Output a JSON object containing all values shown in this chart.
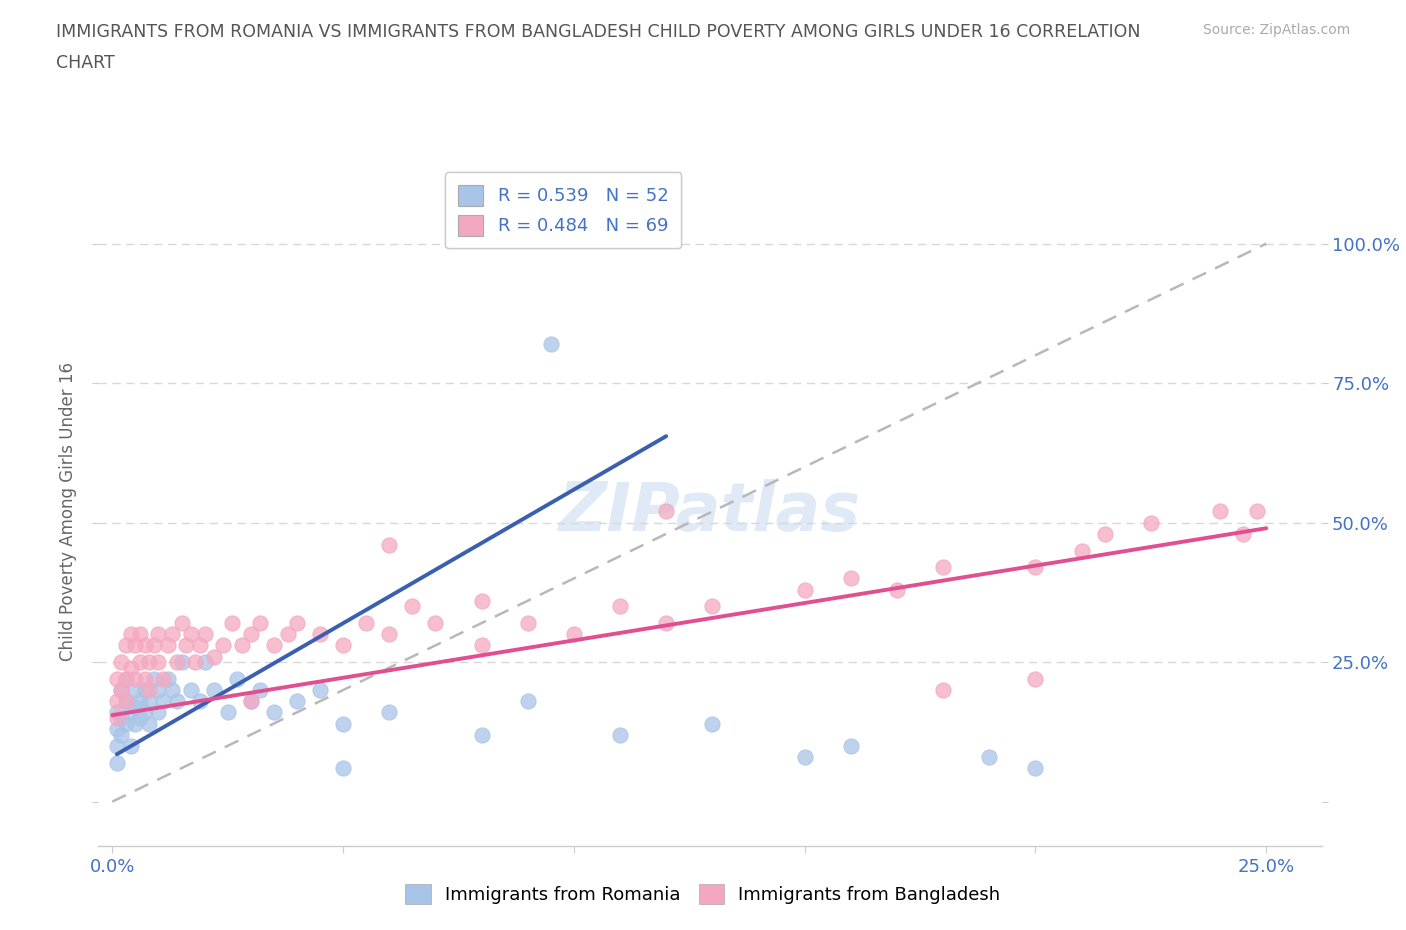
{
  "title_line1": "IMMIGRANTS FROM ROMANIA VS IMMIGRANTS FROM BANGLADESH CHILD POVERTY AMONG GIRLS UNDER 16 CORRELATION",
  "title_line2": "CHART",
  "source_text": "Source: ZipAtlas.com",
  "ylabel": "Child Poverty Among Girls Under 16",
  "xlim": [
    -0.003,
    0.262
  ],
  "ylim": [
    -0.08,
    1.12
  ],
  "xtick_vals": [
    0.0,
    0.05,
    0.1,
    0.15,
    0.2,
    0.25
  ],
  "xticklabels": [
    "0.0%",
    "",
    "",
    "",
    "",
    "25.0%"
  ],
  "ytick_vals": [
    0.0,
    0.25,
    0.5,
    0.75,
    1.0
  ],
  "yticklabels_right": [
    "",
    "25.0%",
    "50.0%",
    "75.0%",
    "100.0%"
  ],
  "romania_R": 0.539,
  "romania_N": 52,
  "bangladesh_R": 0.484,
  "bangladesh_N": 69,
  "romania_color": "#a8c4e8",
  "bangladesh_color": "#f4a8c0",
  "romania_line_color": "#3a5fb0",
  "bangladesh_line_color": "#e05090",
  "diag_line_color": "#b8b8b8",
  "grid_color": "#d8d8d8",
  "legend_text_color": "#4472c4",
  "watermark_color": "#c8d8f0",
  "romania_line_x": [
    0.001,
    0.12
  ],
  "romania_line_y": [
    0.085,
    0.655
  ],
  "bangladesh_line_x": [
    0.0,
    0.25
  ],
  "bangladesh_line_y": [
    0.155,
    0.49
  ],
  "romania_x": [
    0.001,
    0.001,
    0.001,
    0.001,
    0.002,
    0.002,
    0.002,
    0.003,
    0.003,
    0.003,
    0.004,
    0.004,
    0.005,
    0.005,
    0.005,
    0.006,
    0.006,
    0.007,
    0.007,
    0.008,
    0.008,
    0.009,
    0.01,
    0.01,
    0.011,
    0.012,
    0.013,
    0.014,
    0.015,
    0.017,
    0.019,
    0.02,
    0.022,
    0.025,
    0.027,
    0.03,
    0.032,
    0.035,
    0.04,
    0.045,
    0.05,
    0.06,
    0.08,
    0.09,
    0.11,
    0.13,
    0.15,
    0.16,
    0.19,
    0.2,
    0.095,
    0.05
  ],
  "romania_y": [
    0.16,
    0.13,
    0.1,
    0.07,
    0.2,
    0.15,
    0.12,
    0.18,
    0.14,
    0.22,
    0.16,
    0.1,
    0.2,
    0.17,
    0.14,
    0.18,
    0.15,
    0.2,
    0.16,
    0.18,
    0.14,
    0.22,
    0.2,
    0.16,
    0.18,
    0.22,
    0.2,
    0.18,
    0.25,
    0.2,
    0.18,
    0.25,
    0.2,
    0.16,
    0.22,
    0.18,
    0.2,
    0.16,
    0.18,
    0.2,
    0.14,
    0.16,
    0.12,
    0.18,
    0.12,
    0.14,
    0.08,
    0.1,
    0.08,
    0.06,
    0.82,
    0.06
  ],
  "bangladesh_x": [
    0.001,
    0.001,
    0.001,
    0.002,
    0.002,
    0.003,
    0.003,
    0.003,
    0.004,
    0.004,
    0.005,
    0.005,
    0.006,
    0.006,
    0.007,
    0.007,
    0.008,
    0.008,
    0.009,
    0.01,
    0.01,
    0.011,
    0.012,
    0.013,
    0.014,
    0.015,
    0.016,
    0.017,
    0.018,
    0.019,
    0.02,
    0.022,
    0.024,
    0.026,
    0.028,
    0.03,
    0.032,
    0.035,
    0.038,
    0.04,
    0.045,
    0.05,
    0.055,
    0.06,
    0.065,
    0.07,
    0.08,
    0.09,
    0.1,
    0.11,
    0.12,
    0.13,
    0.15,
    0.16,
    0.17,
    0.18,
    0.2,
    0.21,
    0.215,
    0.225,
    0.24,
    0.245,
    0.248,
    0.18,
    0.06,
    0.12,
    0.2,
    0.08,
    0.03
  ],
  "bangladesh_y": [
    0.22,
    0.18,
    0.15,
    0.25,
    0.2,
    0.28,
    0.22,
    0.18,
    0.3,
    0.24,
    0.28,
    0.22,
    0.3,
    0.25,
    0.22,
    0.28,
    0.25,
    0.2,
    0.28,
    0.25,
    0.3,
    0.22,
    0.28,
    0.3,
    0.25,
    0.32,
    0.28,
    0.3,
    0.25,
    0.28,
    0.3,
    0.26,
    0.28,
    0.32,
    0.28,
    0.3,
    0.32,
    0.28,
    0.3,
    0.32,
    0.3,
    0.28,
    0.32,
    0.3,
    0.35,
    0.32,
    0.28,
    0.32,
    0.3,
    0.35,
    0.32,
    0.35,
    0.38,
    0.4,
    0.38,
    0.42,
    0.42,
    0.45,
    0.48,
    0.5,
    0.52,
    0.48,
    0.52,
    0.2,
    0.46,
    0.52,
    0.22,
    0.36,
    0.18
  ]
}
